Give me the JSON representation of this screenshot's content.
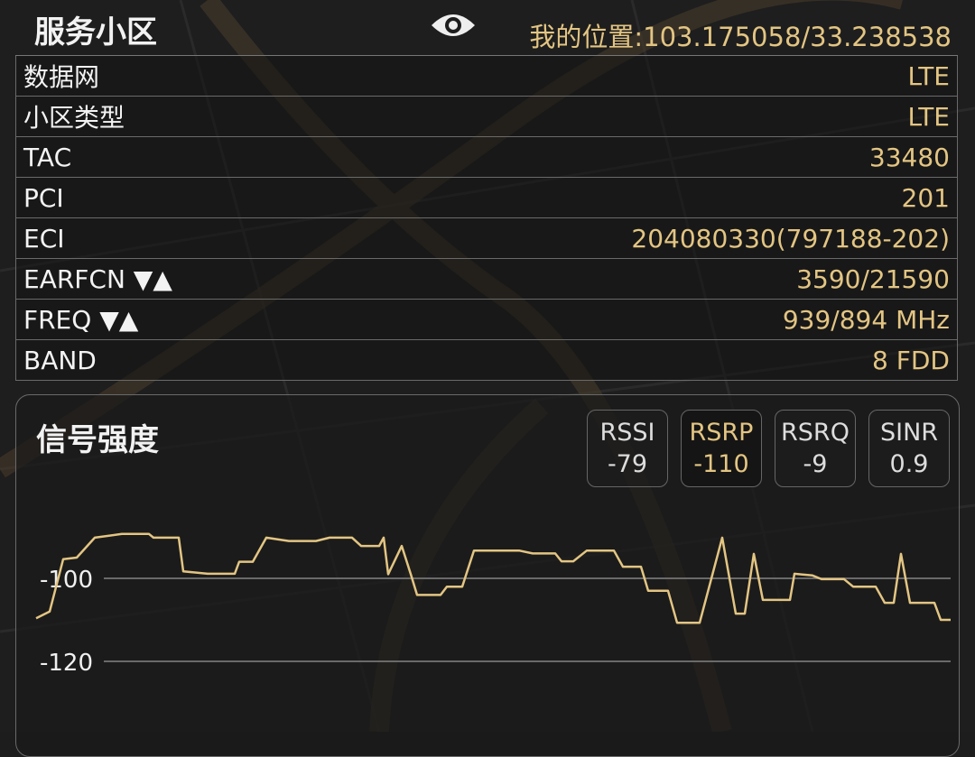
{
  "header": {
    "title": "服务小区",
    "eye_icon": "eye-icon",
    "location_label": "我的位置:103.175058/33.238538"
  },
  "rows": [
    {
      "key": "数据网",
      "value": "LTE"
    },
    {
      "key": "小区类型",
      "value": "LTE"
    },
    {
      "key": "TAC",
      "value": "33480"
    },
    {
      "key": "PCI",
      "value": "201"
    },
    {
      "key": "ECI",
      "value": "204080330(797188-202)"
    },
    {
      "key": "EARFCN ▼▲",
      "value": "3590/21590"
    },
    {
      "key": "FREQ ▼▲",
      "value": "939/894 MHz"
    },
    {
      "key": "BAND",
      "value": "8 FDD"
    }
  ],
  "signal": {
    "title": "信号强度",
    "metrics": [
      {
        "name": "RSSI",
        "value": "-79",
        "active": false
      },
      {
        "name": "RSRP",
        "value": "-110",
        "active": true
      },
      {
        "name": "RSRQ",
        "value": "-9",
        "active": false
      },
      {
        "name": "SINR",
        "value": "0.9",
        "active": false
      }
    ]
  },
  "colors": {
    "accent": "#e3c583",
    "background": "#1d1d1d",
    "grid": "#6a6a6a"
  },
  "chart_data": {
    "type": "line",
    "series_metric": "RSRP",
    "y_ticks": [
      "-100",
      "-120"
    ],
    "y_tick_values": [
      -100,
      -120
    ],
    "grid": true,
    "points": [
      [
        0,
        -109.6
      ],
      [
        1.5,
        -108
      ],
      [
        3,
        -95.4
      ],
      [
        4.5,
        -95
      ],
      [
        6.5,
        -90.2
      ],
      [
        9.5,
        -89.3
      ],
      [
        12.5,
        -89.3
      ],
      [
        13,
        -90.2
      ],
      [
        15.8,
        -90.2
      ],
      [
        16.3,
        -98.3
      ],
      [
        19,
        -98.9
      ],
      [
        22,
        -98.9
      ],
      [
        22.5,
        -96
      ],
      [
        24,
        -96
      ],
      [
        25.5,
        -90.2
      ],
      [
        28,
        -91
      ],
      [
        31,
        -91
      ],
      [
        32.5,
        -90.2
      ],
      [
        35,
        -90.2
      ],
      [
        36,
        -92.2
      ],
      [
        38,
        -92.2
      ],
      [
        38.5,
        -90.2
      ],
      [
        39,
        -99
      ],
      [
        40.5,
        -92.2
      ],
      [
        41.5,
        -99
      ],
      [
        42.2,
        -104
      ],
      [
        44.8,
        -104
      ],
      [
        45.5,
        -102
      ],
      [
        47.2,
        -102
      ],
      [
        48.5,
        -93.3
      ],
      [
        53.5,
        -93.3
      ],
      [
        55,
        -94
      ],
      [
        57.5,
        -94
      ],
      [
        58.2,
        -95.9
      ],
      [
        59.5,
        -95.9
      ],
      [
        61,
        -93.3
      ],
      [
        64,
        -93.3
      ],
      [
        65,
        -97.2
      ],
      [
        67,
        -97.2
      ],
      [
        67.8,
        -103
      ],
      [
        70,
        -103
      ],
      [
        71,
        -110.7
      ],
      [
        73.5,
        -110.7
      ],
      [
        76,
        -90.2
      ],
      [
        77.5,
        -108.5
      ],
      [
        78.5,
        -108.5
      ],
      [
        79.5,
        -94.1
      ],
      [
        80.5,
        -105.2
      ],
      [
        83.5,
        -105.2
      ],
      [
        84,
        -98.9
      ],
      [
        86,
        -99.3
      ],
      [
        87,
        -100.2
      ],
      [
        89.5,
        -100.2
      ],
      [
        90.5,
        -102
      ],
      [
        93,
        -102
      ],
      [
        94,
        -105.9
      ],
      [
        95,
        -105.9
      ],
      [
        95.8,
        -94.1
      ],
      [
        96.8,
        -105.9
      ],
      [
        99.5,
        -105.9
      ],
      [
        100.2,
        -110
      ],
      [
        101.3,
        -110
      ]
    ]
  }
}
